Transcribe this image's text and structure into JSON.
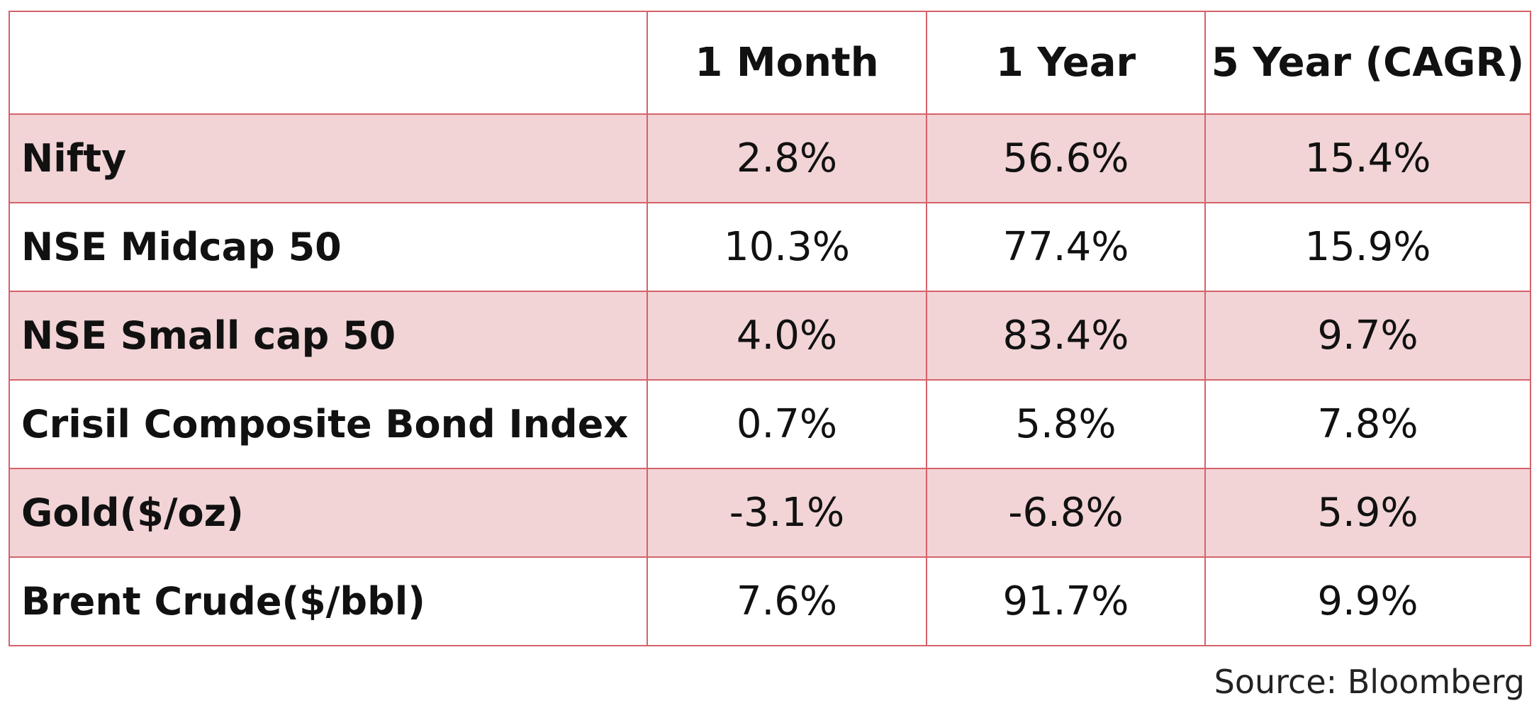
{
  "table": {
    "headers": [
      "",
      "1 Month",
      "1 Year",
      "5 Year (CAGR)"
    ],
    "rows": [
      {
        "label": "Nifty",
        "values": [
          "2.8%",
          "56.6%",
          "15.4%"
        ]
      },
      {
        "label": "NSE Midcap 50",
        "values": [
          "10.3%",
          "77.4%",
          "15.9%"
        ]
      },
      {
        "label": "NSE Small cap 50",
        "values": [
          "4.0%",
          "83.4%",
          "9.7%"
        ]
      },
      {
        "label": "Crisil Composite Bond Index",
        "values": [
          "0.7%",
          "5.8%",
          "7.8%"
        ]
      },
      {
        "label": "Gold($/oz)",
        "values": [
          "-3.1%",
          "-6.8%",
          "5.9%"
        ]
      },
      {
        "label": "Brent Crude($/bbl)",
        "values": [
          "7.6%",
          "91.7%",
          "9.9%"
        ]
      }
    ]
  },
  "source": "Source: Bloomberg",
  "colors": {
    "border": "#d4626b",
    "shaded_row": "#f2d4d6",
    "plain_row": "#ffffff"
  }
}
